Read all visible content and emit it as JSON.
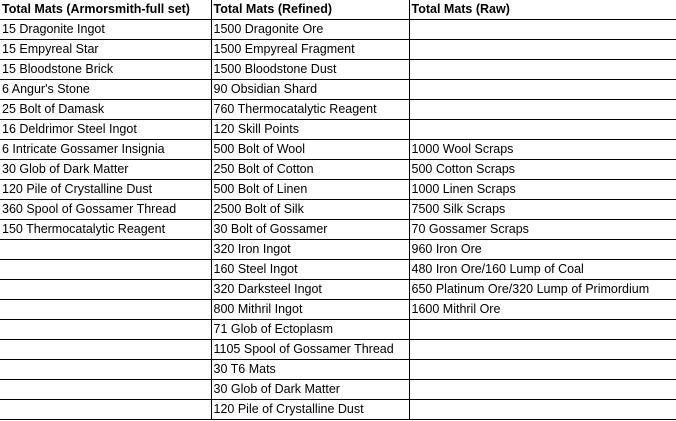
{
  "headers": [
    "Total Mats (Armorsmith-full set)",
    "Total Mats (Refined)",
    "Total Mats (Raw)"
  ],
  "rows": [
    [
      "15 Dragonite Ingot",
      "1500 Dragonite Ore",
      ""
    ],
    [
      "15 Empyreal Star",
      "1500 Empyreal Fragment",
      ""
    ],
    [
      "15 Bloodstone Brick",
      "1500 Bloodstone Dust",
      ""
    ],
    [
      "6 Angur's Stone",
      "90 Obsidian Shard",
      ""
    ],
    [
      "25 Bolt of Damask",
      "760 Thermocatalytic Reagent",
      ""
    ],
    [
      "16 Deldrimor Steel Ingot",
      "120 Skill Points",
      ""
    ],
    [
      "6 Intricate Gossamer Insignia",
      "500 Bolt of Wool",
      "1000 Wool Scraps"
    ],
    [
      "30 Glob of Dark Matter",
      "250 Bolt of Cotton",
      "500 Cotton Scraps"
    ],
    [
      "120 Pile of Crystalline Dust",
      "500 Bolt of Linen",
      "1000 Linen Scraps"
    ],
    [
      "360 Spool of Gossamer Thread",
      "2500 Bolt of Silk",
      "7500 Silk Scraps"
    ],
    [
      "150 Thermocatalytic Reagent",
      "30 Bolt of Gossamer",
      "70 Gossamer Scraps"
    ],
    [
      "",
      "320 Iron Ingot",
      "960 Iron Ore"
    ],
    [
      "",
      "160 Steel Ingot",
      "480 Iron Ore/160 Lump of Coal"
    ],
    [
      "",
      "320 Darksteel Ingot",
      "650 Platinum Ore/320 Lump of Primordium"
    ],
    [
      "",
      "800 Mithril Ingot",
      "1600 Mithril Ore"
    ],
    [
      "",
      "71 Glob of Ectoplasm",
      ""
    ],
    [
      "",
      "1105 Spool of Gossamer Thread",
      ""
    ],
    [
      "",
      "30 T6 Mats",
      ""
    ],
    [
      "",
      "30 Glob of Dark Matter",
      ""
    ],
    [
      "",
      "120 Pile of Crystalline Dust",
      ""
    ]
  ]
}
